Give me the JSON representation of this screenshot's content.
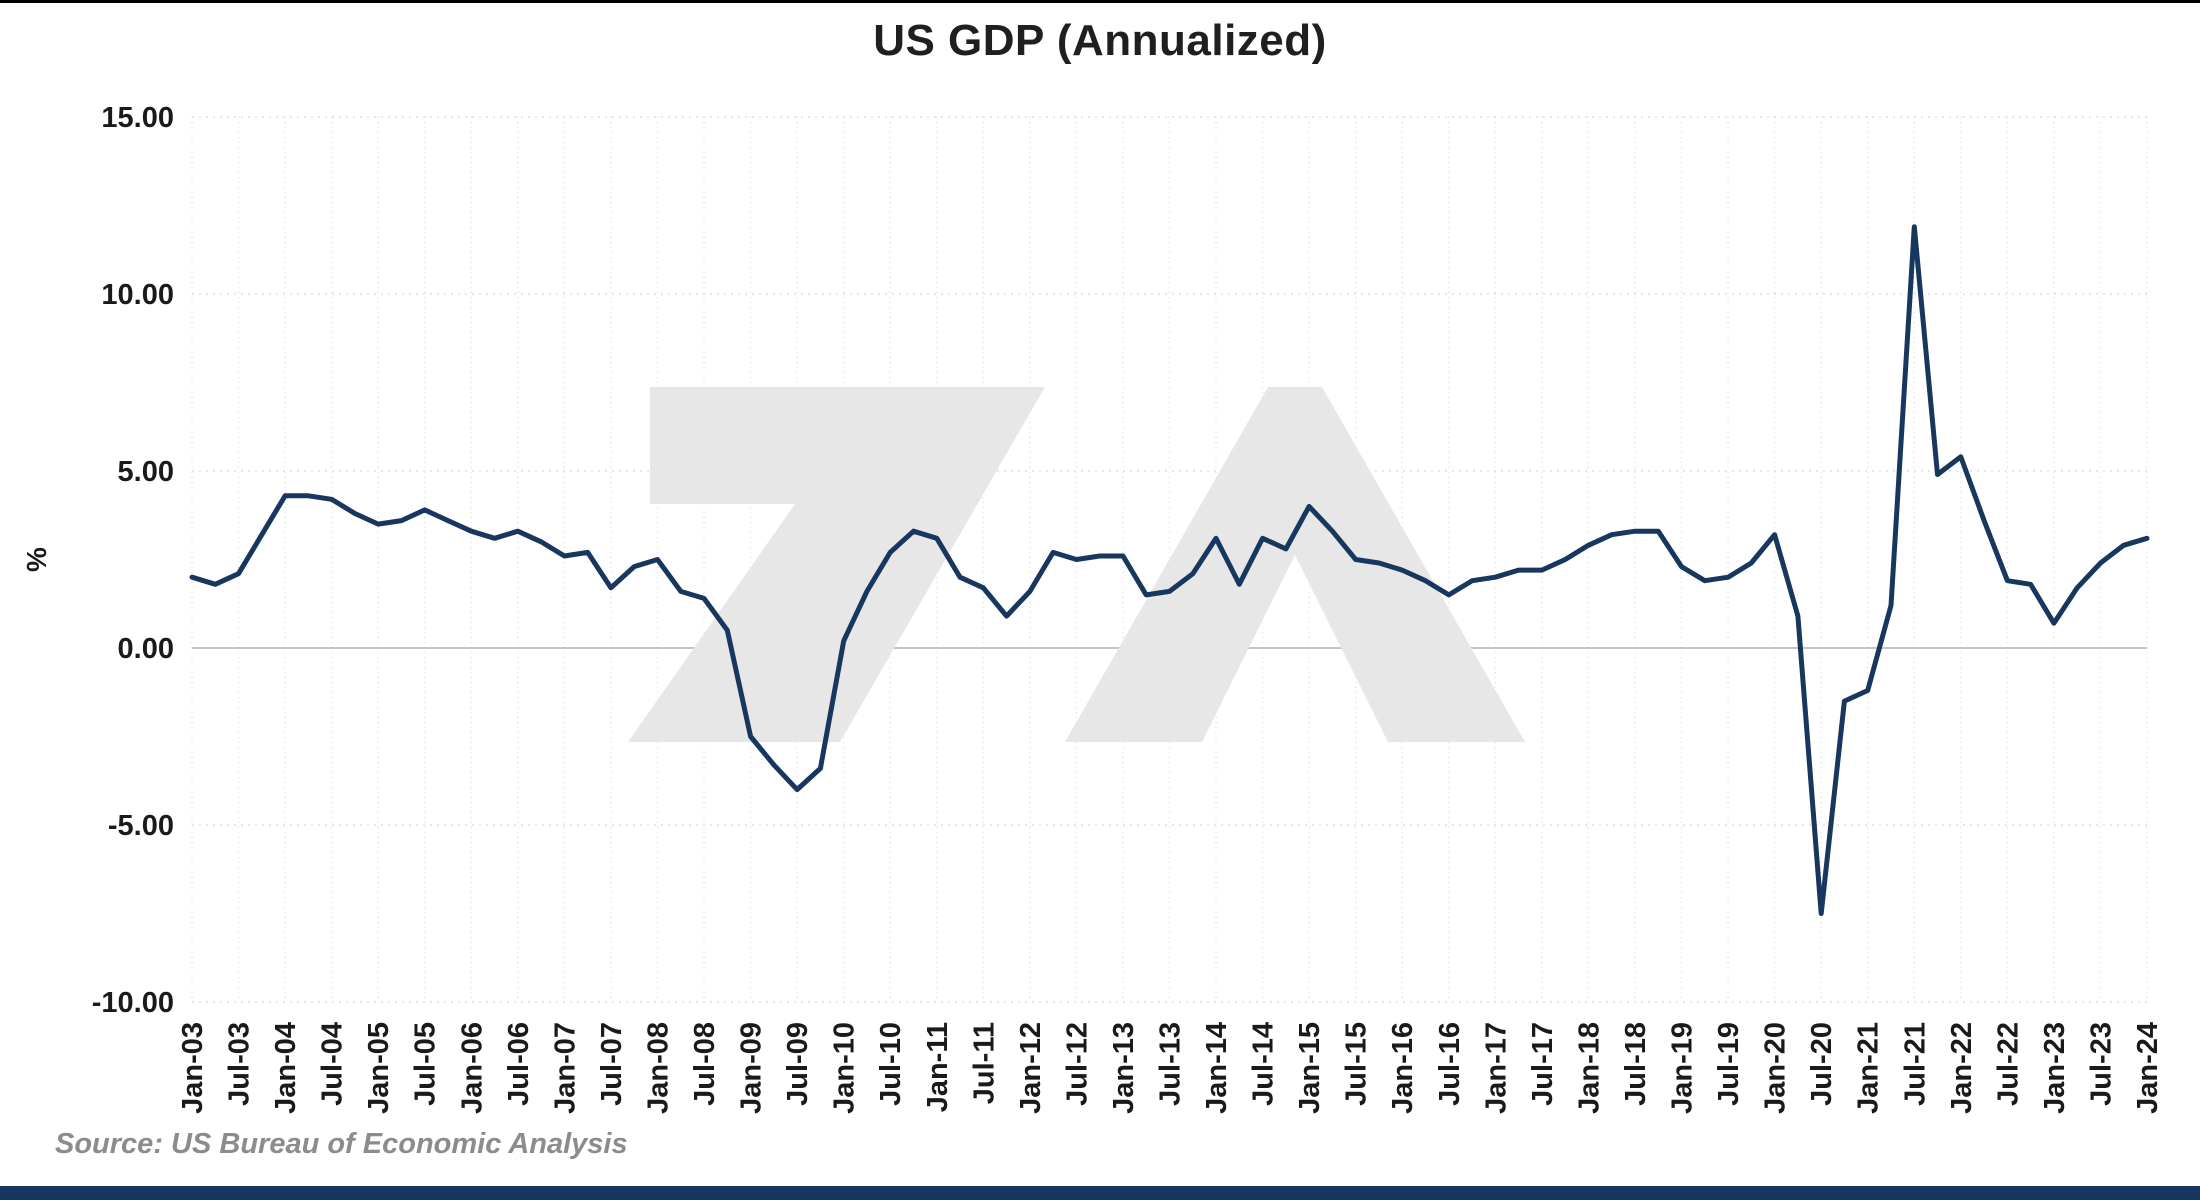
{
  "page": {
    "source": "Source: US Bureau of Economic Analysis"
  },
  "chart_data": {
    "type": "line",
    "title": "US GDP (Annualized)",
    "ylabel": "%",
    "ylim": [
      -10,
      15
    ],
    "y_tick_labels": [
      "15.00",
      "10.00",
      "5.00",
      "0.00",
      "-5.00",
      "-10.00"
    ],
    "y_tick_values": [
      15,
      10,
      5,
      0,
      -5,
      -10
    ],
    "x_tick_labels": [
      "Jan-03",
      "Jul-03",
      "Jan-04",
      "Jul-04",
      "Jan-05",
      "Jul-05",
      "Jan-06",
      "Jul-06",
      "Jan-07",
      "Jul-07",
      "Jan-08",
      "Jul-08",
      "Jan-09",
      "Jul-09",
      "Jan-10",
      "Jul-10",
      "Jan-11",
      "Jul-11",
      "Jan-12",
      "Jul-12",
      "Jan-13",
      "Jul-13",
      "Jan-14",
      "Jul-14",
      "Jan-15",
      "Jul-15",
      "Jan-16",
      "Jul-16",
      "Jan-17",
      "Jul-17",
      "Jan-18",
      "Jul-18",
      "Jan-19",
      "Jul-19",
      "Jan-20",
      "Jul-20",
      "Jan-21",
      "Jul-21",
      "Jan-22",
      "Jul-22",
      "Jan-23",
      "Jul-23",
      "Jan-24"
    ],
    "points_per_tick": 2,
    "values": [
      2.0,
      1.8,
      2.1,
      3.2,
      4.3,
      4.3,
      4.2,
      3.8,
      3.5,
      3.6,
      3.9,
      3.6,
      3.3,
      3.1,
      3.3,
      3.0,
      2.6,
      2.7,
      1.7,
      2.3,
      2.5,
      1.6,
      1.4,
      0.5,
      -2.5,
      -3.3,
      -4.0,
      -3.4,
      0.2,
      1.6,
      2.7,
      3.3,
      3.1,
      2.0,
      1.7,
      0.9,
      1.6,
      2.7,
      2.5,
      2.6,
      2.6,
      1.5,
      1.6,
      2.1,
      3.1,
      1.8,
      3.1,
      2.8,
      4.0,
      3.3,
      2.5,
      2.4,
      2.2,
      1.9,
      1.5,
      1.9,
      2.0,
      2.2,
      2.2,
      2.5,
      2.9,
      3.2,
      3.3,
      3.3,
      2.3,
      1.9,
      2.0,
      2.4,
      3.2,
      0.9,
      -7.5,
      -1.5,
      -1.2,
      1.2,
      11.9,
      4.9,
      5.4,
      3.6,
      1.9,
      1.8,
      0.7,
      1.7,
      2.4,
      2.9,
      3.1
    ],
    "line_color": "#17375E",
    "grid": true,
    "legend": false,
    "watermark": "7A-logo",
    "footer_bar_color": "#17375E",
    "zero_line_color": "#c4c4c4",
    "gridline_color": "#e0e0e0"
  }
}
